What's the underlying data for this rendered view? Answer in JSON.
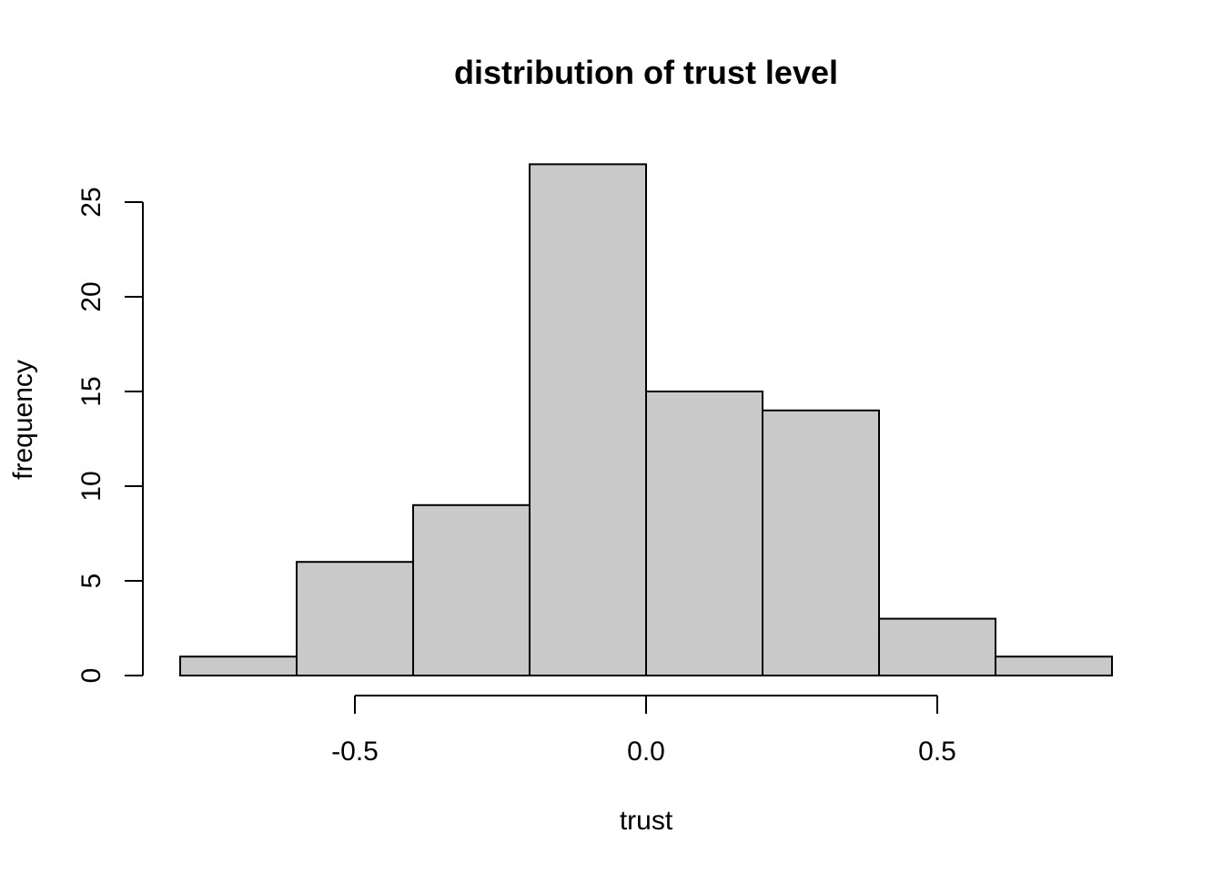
{
  "chart_data": {
    "type": "bar",
    "subtype": "histogram",
    "title": "distribution of trust level",
    "xlabel": "trust",
    "ylabel": "frequency",
    "bins": [
      {
        "from": -0.8,
        "to": -0.6,
        "count": 1
      },
      {
        "from": -0.6,
        "to": -0.4,
        "count": 6
      },
      {
        "from": -0.4,
        "to": -0.2,
        "count": 9
      },
      {
        "from": -0.2,
        "to": 0.0,
        "count": 27
      },
      {
        "from": 0.0,
        "to": 0.2,
        "count": 15
      },
      {
        "from": 0.2,
        "to": 0.4,
        "count": 14
      },
      {
        "from": 0.4,
        "to": 0.6,
        "count": 3
      },
      {
        "from": 0.6,
        "to": 0.8,
        "count": 1
      }
    ],
    "xlim": [
      -0.8,
      0.8
    ],
    "ylim": [
      0,
      27
    ],
    "xticks": [
      -0.5,
      0.0,
      0.5
    ],
    "xtick_labels": [
      "-0.5",
      "0.0",
      "0.5"
    ],
    "yticks": [
      0,
      5,
      10,
      15,
      20,
      25
    ],
    "ytick_labels": [
      "0",
      "5",
      "10",
      "15",
      "20",
      "25"
    ],
    "grid": false,
    "colors": {
      "bar_fill": "#c9c9c9",
      "bar_stroke": "#000000",
      "axis": "#000000",
      "background": "#ffffff"
    }
  }
}
